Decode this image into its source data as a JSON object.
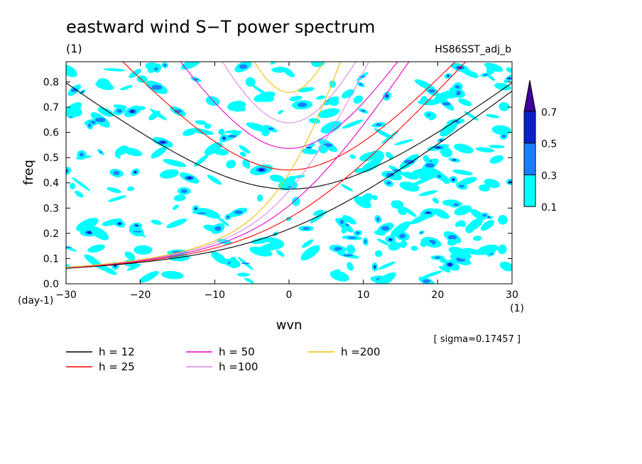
{
  "chart_data": {
    "type": "heatmap",
    "title": "eastward wind S−T power spectrum",
    "subtitle": "(1)",
    "dataset_label": "HS86SST_adj_b",
    "xlabel": "wvn",
    "ylabel": "freq",
    "x_unit": "(1)",
    "y_unit": "(day-1)",
    "xlim": [
      -30,
      30
    ],
    "ylim": [
      0.0,
      0.88
    ],
    "x_ticks": [
      -30,
      -20,
      -10,
      0,
      10,
      20,
      30
    ],
    "x_tick_labels": [
      "−30",
      "−20",
      "−10",
      "0",
      "10",
      "20",
      "30"
    ],
    "y_ticks": [
      0.0,
      0.1,
      0.2,
      0.3,
      0.4,
      0.5,
      0.6,
      0.7,
      0.8
    ],
    "y_tick_labels": [
      "0.0",
      "0.1",
      "0.2",
      "0.3",
      "0.4",
      "0.5",
      "0.6",
      "0.7",
      "0.8"
    ],
    "sigma_label": "[ sigma=0.17457 ]",
    "colorbar": {
      "levels": [
        "0.1",
        "0.3",
        "0.5",
        "0.7"
      ],
      "colors": [
        "#00ffff",
        "#1a7fff",
        "#0d1fcc",
        "#400099"
      ]
    },
    "dispersion_curves": [
      {
        "h": 12,
        "label": "h = 12",
        "color": "#000000"
      },
      {
        "h": 25,
        "label": "h = 25",
        "color": "#ff0000"
      },
      {
        "h": 50,
        "label": "h = 50",
        "color": "#e600c8"
      },
      {
        "h": 100,
        "label": "h =100",
        "color": "#d98be6"
      },
      {
        "h": 200,
        "label": "h =200",
        "color": "#f0c000"
      }
    ]
  }
}
